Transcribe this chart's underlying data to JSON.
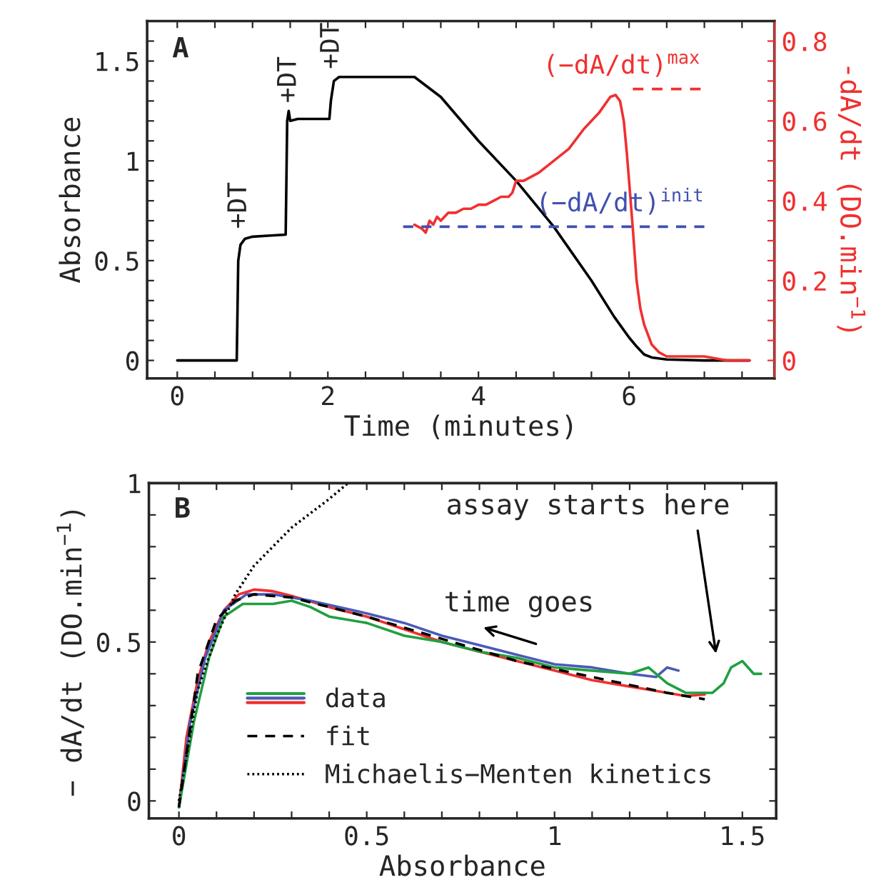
{
  "chart_data": [
    {
      "type": "line",
      "xlabel": "Time (minutes)",
      "ylabel": "Absorbance",
      "y2label": "-dA/dt (DO.min$^{−1}$)",
      "xlim": [
        -0.4,
        7.93
      ],
      "ylim": [
        -0.09,
        1.7
      ],
      "y2lim": [
        -0.045,
        0.85
      ],
      "xticks": [
        0,
        {
          "value": 0.5,
          "label": null
        },
        {
          "value": 1,
          "label": null
        },
        {
          "value": 1.5,
          "label": null
        },
        2,
        {
          "value": 2.5,
          "label": null
        },
        {
          "value": 3,
          "label": null
        },
        {
          "value": 3.5,
          "label": null
        },
        4,
        {
          "value": 4.5,
          "label": null
        },
        {
          "value": 5,
          "label": null
        },
        {
          "value": 5.5,
          "label": null
        },
        6,
        {
          "value": 6.5,
          "label": null
        },
        {
          "value": 7,
          "label": null
        },
        {
          "value": 7.5,
          "label": null
        }
      ],
      "yticks": [
        0,
        {
          "value": 0.1,
          "label": null
        },
        {
          "value": 0.2,
          "label": null
        },
        {
          "value": 0.3,
          "label": null
        },
        {
          "value": 0.4,
          "label": null
        },
        0.5,
        {
          "value": 0.6,
          "label": null
        },
        {
          "value": 0.7,
          "label": null
        },
        {
          "value": 0.8,
          "label": null
        },
        {
          "value": 0.9,
          "label": null
        },
        1,
        {
          "value": 1.1,
          "label": null
        },
        {
          "value": 1.2,
          "label": null
        },
        {
          "value": 1.3,
          "label": null
        },
        {
          "value": 1.4,
          "label": null
        },
        1.5,
        {
          "value": 1.6,
          "label": null
        }
      ],
      "y2ticks": [
        0,
        {
          "value": 0.05,
          "label": null
        },
        {
          "value": 0.1,
          "label": null
        },
        {
          "value": 0.15,
          "label": null
        },
        0.2,
        {
          "value": 0.25,
          "label": null
        },
        {
          "value": 0.3,
          "label": null
        },
        {
          "value": 0.35,
          "label": null
        },
        0.4,
        {
          "value": 0.45,
          "label": null
        },
        {
          "value": 0.5,
          "label": null
        },
        {
          "value": 0.55,
          "label": null
        },
        0.6,
        {
          "value": 0.65,
          "label": null
        },
        {
          "value": 0.7,
          "label": null
        },
        {
          "value": 0.75,
          "label": null
        },
        0.8
      ],
      "grid": false,
      "legend": false,
      "series": [
        {
          "color": "#000000",
          "x": [
            0,
            0.79,
            0.81,
            0.84,
            0.9,
            1.0,
            1.2,
            1.44,
            1.46,
            1.48,
            1.5,
            1.6,
            1.8,
            2.02,
            2.04,
            2.08,
            2.15,
            2.5,
            3.0,
            3.15,
            3.5,
            4.0,
            4.5,
            5.0,
            5.5,
            5.8,
            6.0,
            6.1,
            6.2,
            6.3,
            6.5,
            7.0,
            7.6
          ],
          "values": [
            0,
            0,
            0.5,
            0.58,
            0.61,
            0.62,
            0.625,
            0.63,
            1.2,
            1.25,
            1.2,
            1.21,
            1.21,
            1.21,
            1.3,
            1.4,
            1.42,
            1.42,
            1.42,
            1.42,
            1.32,
            1.1,
            0.9,
            0.67,
            0.4,
            0.22,
            0.115,
            0.07,
            0.03,
            0.015,
            0.005,
            0,
            0
          ]
        },
        {
          "color": "#f03030",
          "axis": "y2",
          "x": [
            3.15,
            3.25,
            3.3,
            3.35,
            3.4,
            3.45,
            3.5,
            3.6,
            3.7,
            3.8,
            3.9,
            4.0,
            4.1,
            4.2,
            4.3,
            4.4,
            4.45,
            4.5,
            4.6,
            4.8,
            5.0,
            5.2,
            5.4,
            5.6,
            5.75,
            5.82,
            5.88,
            5.93,
            5.97,
            6.0,
            6.05,
            6.1,
            6.15,
            6.2,
            6.3,
            6.4,
            6.5,
            6.7,
            7.0,
            7.3,
            7.6
          ],
          "values": [
            0.34,
            0.33,
            0.32,
            0.35,
            0.34,
            0.36,
            0.35,
            0.37,
            0.37,
            0.38,
            0.38,
            0.39,
            0.39,
            0.4,
            0.41,
            0.41,
            0.42,
            0.45,
            0.45,
            0.47,
            0.5,
            0.53,
            0.58,
            0.62,
            0.66,
            0.665,
            0.65,
            0.6,
            0.52,
            0.45,
            0.33,
            0.2,
            0.13,
            0.09,
            0.04,
            0.02,
            0.01,
            0.01,
            0.01,
            0,
            0
          ]
        },
        {
          "name": "(−dA/dt)$^{max}$",
          "color": "#f03030",
          "axis": "y2",
          "line_style": "dashed",
          "x": [
            6.05,
            6.95
          ],
          "values": [
            0.68,
            0.68
          ]
        },
        {
          "name": "(−dA/dt)$^{init}$",
          "color": "#4050b0",
          "axis": "y2",
          "line_style": "dashed",
          "x": [
            3.0,
            7.0
          ],
          "values": [
            0.335,
            0.335
          ]
        }
      ],
      "annotations": [
        "A",
        {
          "text": "+DT",
          "x": 0.82,
          "y": 0.62
        },
        {
          "text": "+DT",
          "x": 1.48,
          "y": 1.25
        },
        {
          "text": "+DT",
          "x": 2.05,
          "y": 1.42
        }
      ]
    },
    {
      "type": "line",
      "xlabel": "Absorbance",
      "ylabel": "− dA/dt (DO.min$^{−1}$)",
      "xlim": [
        -0.08,
        1.59
      ],
      "ylim": [
        -0.055,
        1.0
      ],
      "xticks": [
        0,
        {
          "value": 0.1,
          "label": null
        },
        {
          "value": 0.2,
          "label": null
        },
        {
          "value": 0.3,
          "label": null
        },
        {
          "value": 0.4,
          "label": null
        },
        0.5,
        {
          "value": 0.6,
          "label": null
        },
        {
          "value": 0.7,
          "label": null
        },
        {
          "value": 0.8,
          "label": null
        },
        {
          "value": 0.9,
          "label": null
        },
        1,
        {
          "value": 1.1,
          "label": null
        },
        {
          "value": 1.2,
          "label": null
        },
        {
          "value": 1.3,
          "label": null
        },
        {
          "value": 1.4,
          "label": null
        },
        1.5
      ],
      "yticks": [
        0,
        {
          "value": 0.1,
          "label": null
        },
        {
          "value": 0.2,
          "label": null
        },
        {
          "value": 0.3,
          "label": null
        },
        {
          "value": 0.4,
          "label": null
        },
        0.5,
        {
          "value": 0.6,
          "label": null
        },
        {
          "value": 0.7,
          "label": null
        },
        {
          "value": 0.8,
          "label": null
        },
        {
          "value": 0.9,
          "label": null
        },
        1
      ],
      "grid": false,
      "legend": "bottom left",
      "series": [
        {
          "name": "data",
          "color": "#f03030",
          "x": [
            0,
            0.02,
            0.05,
            0.08,
            0.12,
            0.16,
            0.2,
            0.25,
            0.3,
            0.4,
            0.5,
            0.6,
            0.7,
            0.8,
            0.9,
            1.0,
            1.1,
            1.2,
            1.25,
            1.3,
            1.35,
            1.4
          ],
          "values": [
            -0.02,
            0.2,
            0.38,
            0.5,
            0.6,
            0.65,
            0.665,
            0.66,
            0.645,
            0.61,
            0.58,
            0.54,
            0.5,
            0.47,
            0.44,
            0.41,
            0.38,
            0.36,
            0.35,
            0.34,
            0.33,
            0.335
          ]
        },
        {
          "color": "#4a5ab8",
          "x": [
            0,
            0.03,
            0.07,
            0.12,
            0.18,
            0.25,
            0.35,
            0.5,
            0.6,
            0.7,
            0.8,
            0.9,
            1.0,
            1.1,
            1.2,
            1.27,
            1.3,
            1.33
          ],
          "values": [
            -0.02,
            0.25,
            0.45,
            0.6,
            0.65,
            0.65,
            0.63,
            0.59,
            0.56,
            0.52,
            0.49,
            0.46,
            0.43,
            0.42,
            0.4,
            0.39,
            0.42,
            0.41
          ]
        },
        {
          "color": "#20a040",
          "x": [
            0,
            0.04,
            0.08,
            0.12,
            0.17,
            0.25,
            0.3,
            0.35,
            0.4,
            0.5,
            0.6,
            0.7,
            0.8,
            0.9,
            1.0,
            1.1,
            1.2,
            1.25,
            1.3,
            1.35,
            1.42,
            1.45,
            1.47,
            1.5,
            1.53,
            1.55
          ],
          "values": [
            -0.02,
            0.25,
            0.45,
            0.58,
            0.62,
            0.62,
            0.63,
            0.61,
            0.58,
            0.56,
            0.52,
            0.5,
            0.47,
            0.45,
            0.42,
            0.41,
            0.4,
            0.42,
            0.37,
            0.34,
            0.34,
            0.37,
            0.42,
            0.44,
            0.4,
            0.4
          ]
        },
        {
          "name": "fit",
          "color": "#000000",
          "line_style": "dashed",
          "x": [
            0,
            0.05,
            0.1,
            0.15,
            0.2,
            0.3,
            0.5,
            0.7,
            0.9,
            1.1,
            1.3,
            1.4
          ],
          "values": [
            -0.02,
            0.4,
            0.57,
            0.63,
            0.65,
            0.64,
            0.58,
            0.51,
            0.44,
            0.39,
            0.34,
            0.32
          ]
        },
        {
          "name": "Michaelis−Menten kinetics",
          "color": "#000000",
          "line_style": "dotted",
          "x": [
            0,
            0.05,
            0.1,
            0.15,
            0.2,
            0.3,
            0.4,
            0.45
          ],
          "values": [
            0,
            0.35,
            0.52,
            0.65,
            0.74,
            0.86,
            0.95,
            1.0
          ]
        }
      ],
      "annotations": [
        "B",
        "time goes",
        "assay starts here"
      ]
    }
  ]
}
